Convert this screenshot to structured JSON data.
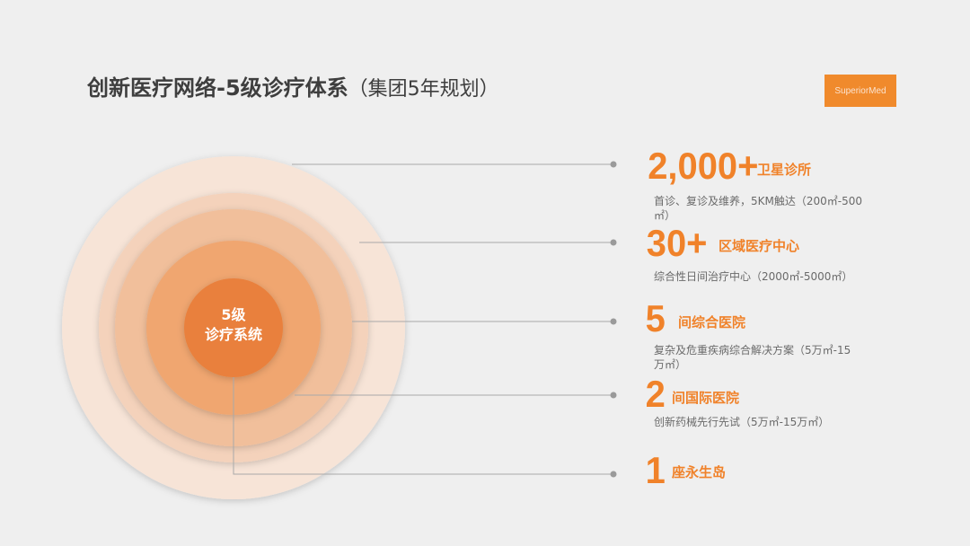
{
  "title": {
    "main": "创新医疗网络-5级诊疗体系",
    "sub": "（集团5年规划）"
  },
  "logo": "SuperiorMed",
  "center_label": [
    "5级",
    "诊疗系统"
  ],
  "colors": {
    "accent": "#f0822a",
    "rings": [
      "#f7e3d6",
      "#f3d0b7",
      "#efb88f",
      "#f0a066",
      "#e9803c"
    ]
  },
  "tiers": [
    {
      "number": "2,000+",
      "label": "卫星诊所",
      "desc": "首诊、复诊及维养，5KM触达（200㎡-500㎡）"
    },
    {
      "number": "30+",
      "label": "区域医疗中心",
      "desc": "综合性日间治疗中心（2000㎡-5000㎡）"
    },
    {
      "number": "5",
      "label": "间综合医院",
      "desc": "复杂及危重疾病综合解决方案（5万㎡-15万㎡）"
    },
    {
      "number": "2",
      "label": "间国际医院",
      "desc": "创新药械先行先试（5万㎡-15万㎡）"
    },
    {
      "number": "1",
      "label": "座永生岛",
      "desc": ""
    }
  ]
}
